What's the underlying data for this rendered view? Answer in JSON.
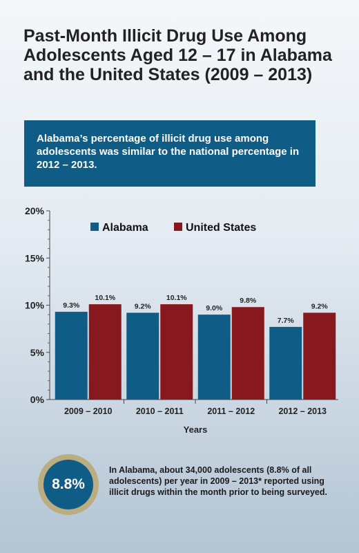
{
  "header": {
    "title": "Past-Month Illicit Drug Use Among Adolescents Aged 12 – 17 in Alabama and the United States (2009 – 2013)"
  },
  "callout": {
    "text": "Alabama’s percentage of illicit drug use among adolescents was similar to the national percentage in 2012 – 2013."
  },
  "chart_data": {
    "type": "bar",
    "categories": [
      "2009 – 2010",
      "2010 – 2011",
      "2011 – 2012",
      "2012 – 2013"
    ],
    "series": [
      {
        "name": "Alabama",
        "values": [
          9.3,
          9.2,
          9.0,
          7.7
        ],
        "labels": [
          "9.3%",
          "9.2%",
          "9.0%",
          "7.7%"
        ],
        "color": "#0f5d87"
      },
      {
        "name": "United States",
        "values": [
          10.1,
          10.1,
          9.8,
          9.2
        ],
        "labels": [
          "10.1%",
          "10.1%",
          "9.8%",
          "9.2%"
        ],
        "color": "#86181e"
      }
    ],
    "ylim": [
      0,
      20
    ],
    "yticks": [
      0,
      5,
      10,
      15,
      20
    ],
    "ytick_labels": [
      "0%",
      "5%",
      "10%",
      "15%",
      "20%"
    ],
    "xlabel": "Years",
    "ylabel": "",
    "legend": "top",
    "grid": false
  },
  "stat": {
    "value": "8.8%",
    "text": "In Alabama, about 34,000 adolescents (8.8% of  all adolescents) per year in 2009 – 2013* reported using illicit drugs within the month prior to being surveyed."
  }
}
